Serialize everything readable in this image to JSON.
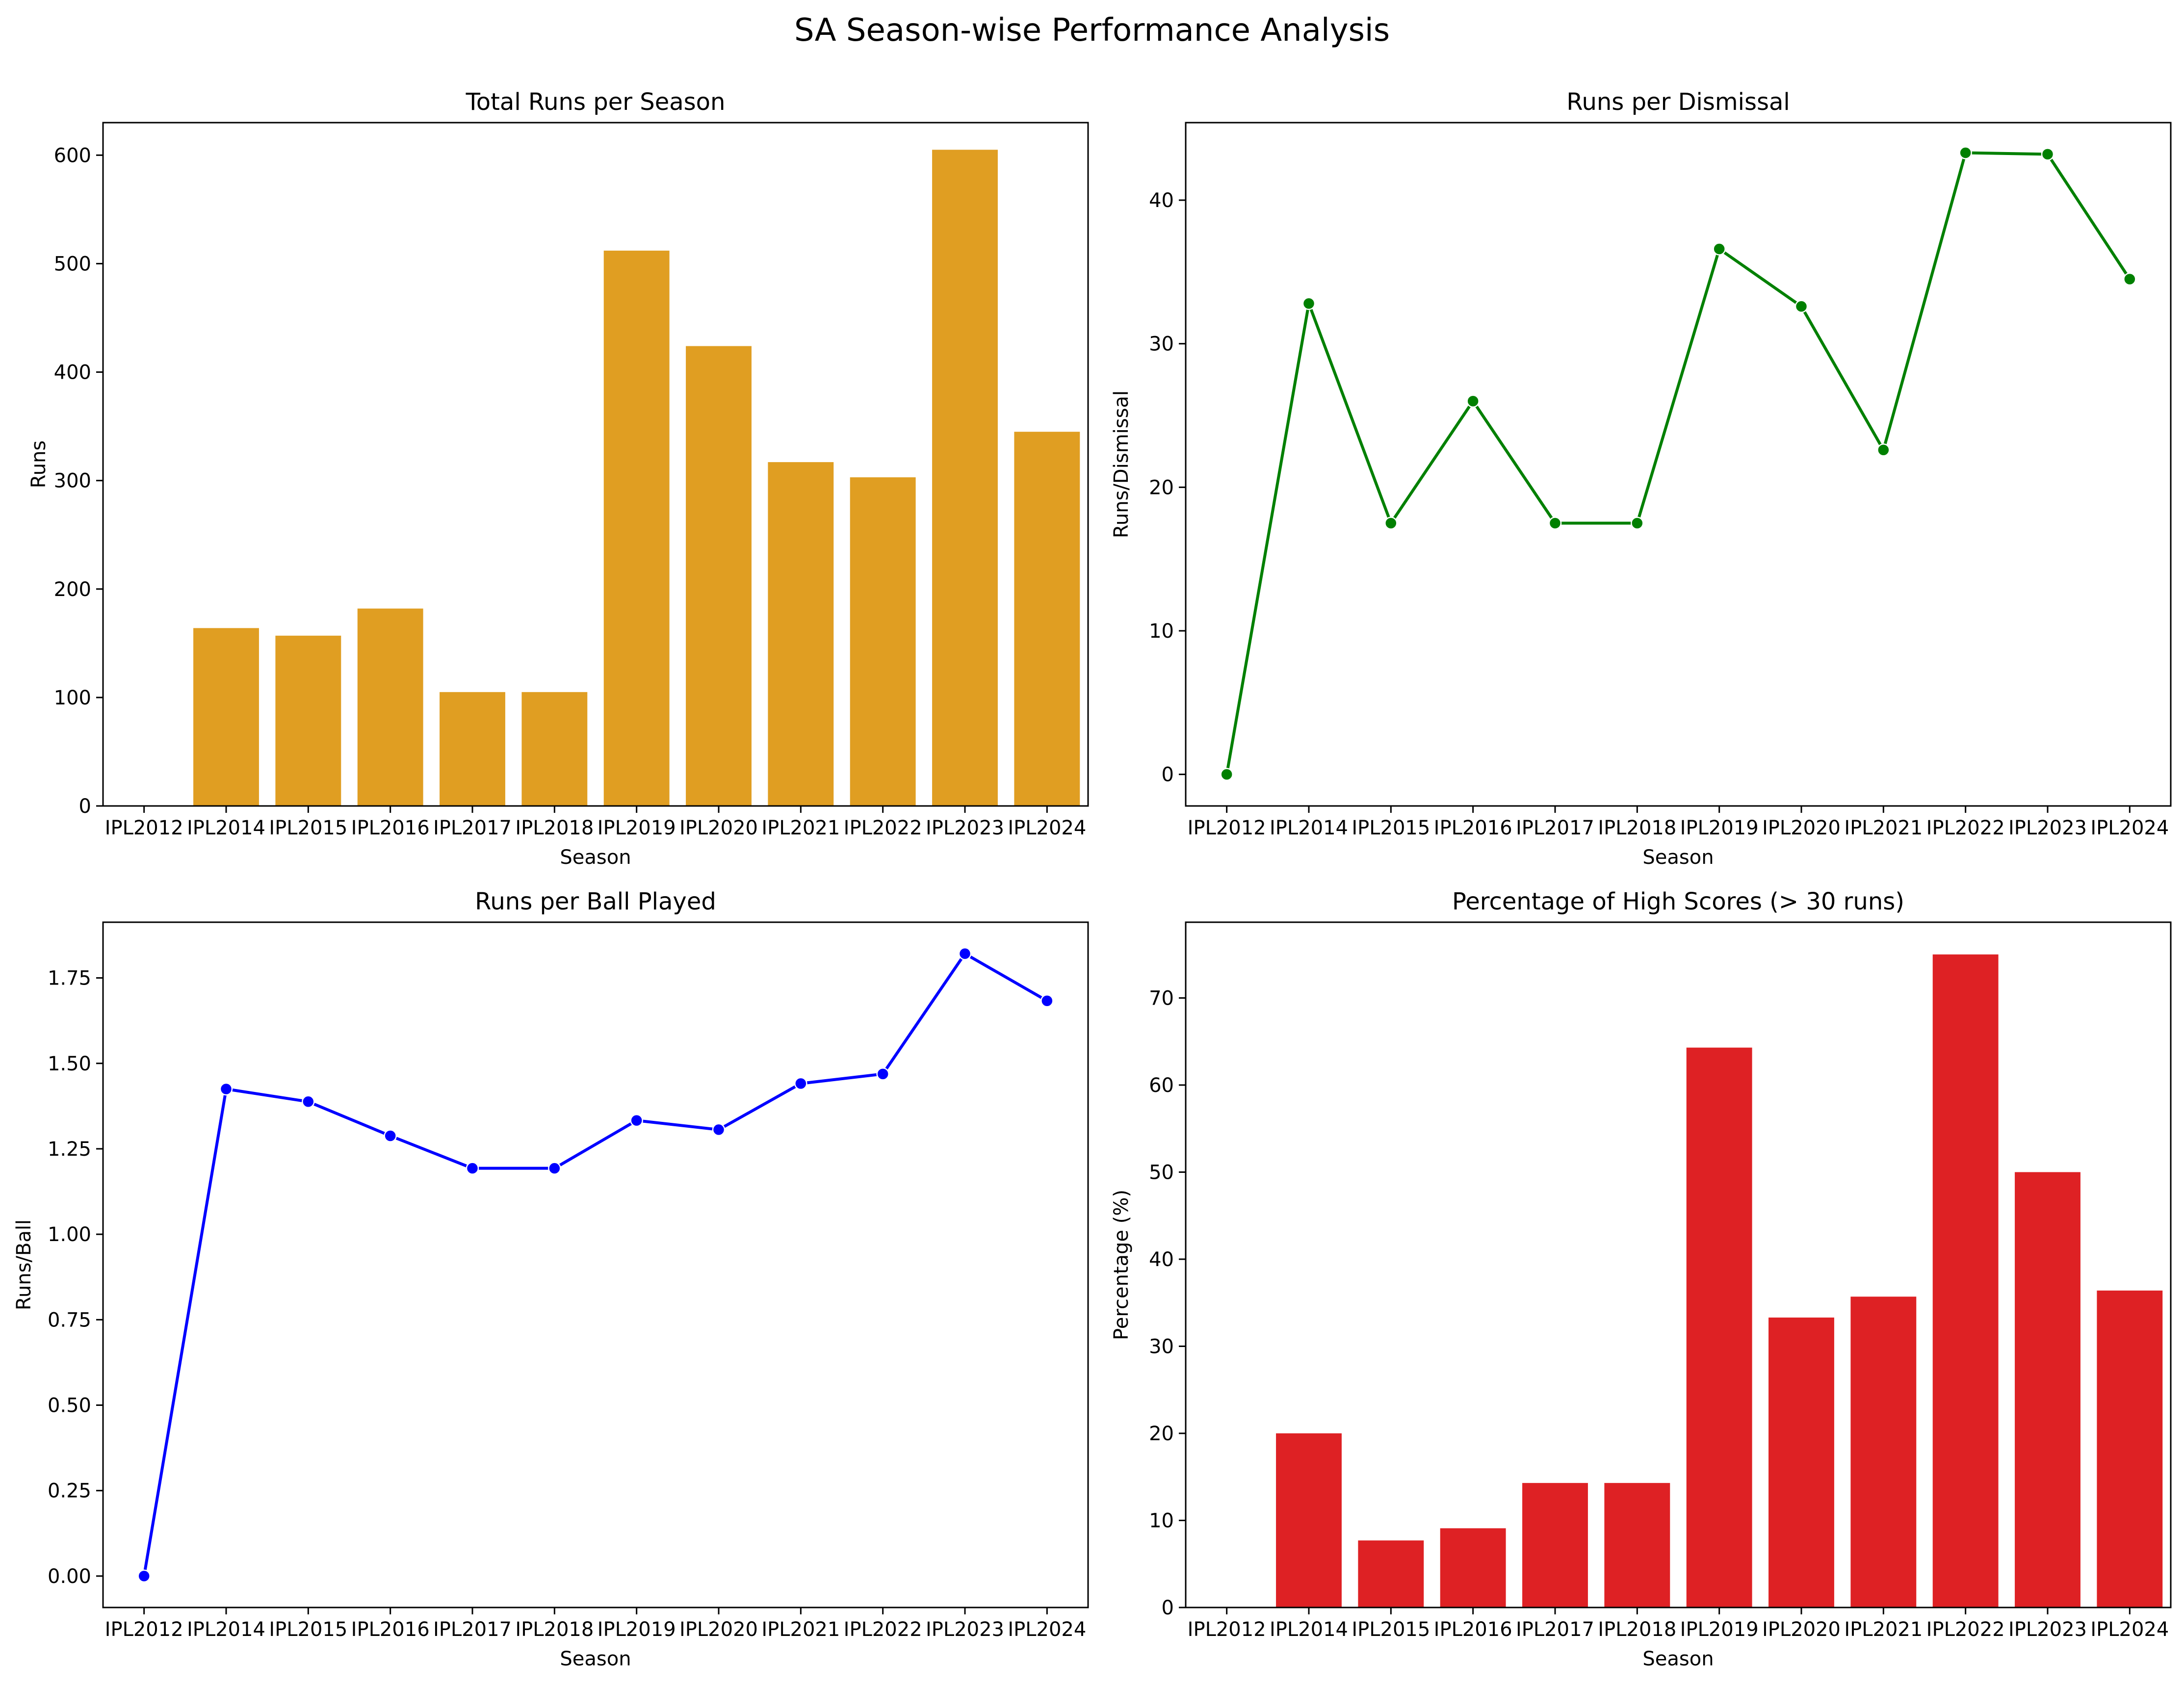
{
  "suptitle": "SA Season-wise Performance Analysis",
  "chart_data": [
    {
      "type": "bar",
      "title": "Total Runs per Season",
      "xlabel": "Season",
      "ylabel": "Runs",
      "ylim": [
        0,
        630
      ],
      "yticks": [
        0,
        100,
        200,
        300,
        400,
        500,
        600
      ],
      "tick_labels": [
        "0",
        "100",
        "200",
        "300",
        "400",
        "500",
        "600"
      ],
      "categories": [
        "IPL2012",
        "IPL2014",
        "IPL2015",
        "IPL2016",
        "IPL2017",
        "IPL2018",
        "IPL2019",
        "IPL2020",
        "IPL2021",
        "IPL2022",
        "IPL2023",
        "IPL2024"
      ],
      "values": [
        0,
        164,
        157,
        182,
        105,
        105,
        512,
        424,
        317,
        303,
        605,
        345
      ],
      "color": "#e09e22",
      "grid": false
    },
    {
      "type": "line",
      "title": "Runs per Dismissal",
      "xlabel": "Season",
      "ylabel": "Runs/Dismissal",
      "ylim": [
        -2.2,
        45.4
      ],
      "yticks": [
        0,
        10,
        20,
        30,
        40
      ],
      "tick_labels": [
        "0",
        "10",
        "20",
        "30",
        "40"
      ],
      "categories": [
        "IPL2012",
        "IPL2014",
        "IPL2015",
        "IPL2016",
        "IPL2017",
        "IPL2018",
        "IPL2019",
        "IPL2020",
        "IPL2021",
        "IPL2022",
        "IPL2023",
        "IPL2024"
      ],
      "values": [
        0,
        32.8,
        17.5,
        26.0,
        17.5,
        17.5,
        36.6,
        32.6,
        22.6,
        43.3,
        43.2,
        34.5
      ],
      "color": "#008000",
      "grid": false
    },
    {
      "type": "line",
      "title": "Runs per Ball Played",
      "xlabel": "Season",
      "ylabel": "Runs/Ball",
      "ylim": [
        -0.092,
        1.913
      ],
      "yticks": [
        0,
        0.25,
        0.5,
        0.75,
        1.0,
        1.25,
        1.5,
        1.75
      ],
      "tick_labels": [
        "0.00",
        "0.25",
        "0.50",
        "0.75",
        "1.00",
        "1.25",
        "1.50",
        "1.75"
      ],
      "categories": [
        "IPL2012",
        "IPL2014",
        "IPL2015",
        "IPL2016",
        "IPL2017",
        "IPL2018",
        "IPL2019",
        "IPL2020",
        "IPL2021",
        "IPL2022",
        "IPL2023",
        "IPL2024"
      ],
      "values": [
        0,
        1.425,
        1.388,
        1.288,
        1.193,
        1.193,
        1.333,
        1.306,
        1.441,
        1.469,
        1.821,
        1.683
      ],
      "color": "#0000ff",
      "grid": false
    },
    {
      "type": "bar",
      "title": "Percentage of High Scores (> 30 runs)",
      "xlabel": "Season",
      "ylabel": "Percentage (%)",
      "ylim": [
        0,
        78.7
      ],
      "yticks": [
        0,
        10,
        20,
        30,
        40,
        50,
        60,
        70
      ],
      "tick_labels": [
        "0",
        "10",
        "20",
        "30",
        "40",
        "50",
        "60",
        "70"
      ],
      "categories": [
        "IPL2012",
        "IPL2014",
        "IPL2015",
        "IPL2016",
        "IPL2017",
        "IPL2018",
        "IPL2019",
        "IPL2020",
        "IPL2021",
        "IPL2022",
        "IPL2023",
        "IPL2024"
      ],
      "values": [
        0,
        20.0,
        7.7,
        9.1,
        14.3,
        14.3,
        64.3,
        33.3,
        35.7,
        75.0,
        50.0,
        36.4
      ],
      "color": "#de2124",
      "grid": false
    }
  ]
}
